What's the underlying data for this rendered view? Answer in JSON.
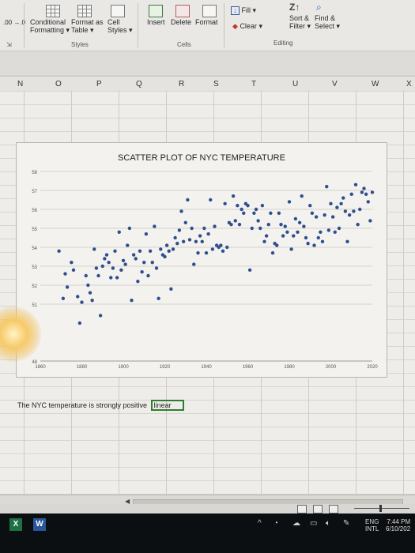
{
  "ribbon": {
    "number_format": ".00\n→.0",
    "conditional_formatting": "Conditional",
    "conditional_formatting_2": "Formatting",
    "format_as_table": "Format as",
    "format_as_table_2": "Table",
    "cell_styles": "Cell",
    "cell_styles_2": "Styles",
    "group_styles": "Styles",
    "insert": "Insert",
    "delete": "Delete",
    "format": "Format",
    "group_cells": "Cells",
    "fill": "Fill",
    "clear": "Clear",
    "sort_filter": "Sort &",
    "sort_filter_2": "Filter",
    "find_select": "Find &",
    "find_select_2": "Select",
    "group_editing": "Editing",
    "dropdown_glyph": "▾",
    "launcher_glyph": "⇲"
  },
  "columns": [
    "N",
    "O",
    "P",
    "Q",
    "R",
    "S",
    "T",
    "U",
    "V",
    "W",
    "X"
  ],
  "chart_data": {
    "type": "scatter",
    "title": "SCATTER PLOT OF NYC TEMPERATURE",
    "xlabel": "",
    "ylabel": "",
    "xlim": [
      1860,
      2020
    ],
    "ylim": [
      48,
      58
    ],
    "x_ticks": [
      1860,
      1880,
      1900,
      1920,
      1940,
      1960,
      1980,
      2000,
      2020
    ],
    "y_ticks": [
      58,
      57,
      56,
      55,
      54,
      53,
      52,
      51,
      48
    ],
    "grid": true,
    "color": "#2f4f8f",
    "points": [
      [
        1869,
        53.8
      ],
      [
        1871,
        51.3
      ],
      [
        1872,
        52.6
      ],
      [
        1873,
        51.9
      ],
      [
        1875,
        53.2
      ],
      [
        1876,
        52.8
      ],
      [
        1878,
        51.4
      ],
      [
        1879,
        50.0
      ],
      [
        1880,
        51.1
      ],
      [
        1882,
        52.5
      ],
      [
        1883,
        52.0
      ],
      [
        1884,
        51.6
      ],
      [
        1885,
        51.2
      ],
      [
        1886,
        53.9
      ],
      [
        1887,
        52.9
      ],
      [
        1888,
        52.5
      ],
      [
        1889,
        50.4
      ],
      [
        1890,
        53.0
      ],
      [
        1891,
        53.4
      ],
      [
        1892,
        53.6
      ],
      [
        1893,
        53.2
      ],
      [
        1894,
        52.4
      ],
      [
        1895,
        52.9
      ],
      [
        1896,
        53.8
      ],
      [
        1897,
        52.4
      ],
      [
        1898,
        54.8
      ],
      [
        1899,
        52.8
      ],
      [
        1900,
        53.3
      ],
      [
        1901,
        53.1
      ],
      [
        1902,
        54.1
      ],
      [
        1903,
        55.0
      ],
      [
        1904,
        51.2
      ],
      [
        1905,
        53.6
      ],
      [
        1906,
        53.4
      ],
      [
        1907,
        52.2
      ],
      [
        1908,
        53.8
      ],
      [
        1909,
        52.7
      ],
      [
        1910,
        53.2
      ],
      [
        1911,
        54.7
      ],
      [
        1912,
        52.5
      ],
      [
        1913,
        53.8
      ],
      [
        1914,
        53.2
      ],
      [
        1915,
        55.1
      ],
      [
        1916,
        52.9
      ],
      [
        1917,
        51.3
      ],
      [
        1918,
        53.9
      ],
      [
        1919,
        53.6
      ],
      [
        1920,
        53.5
      ],
      [
        1921,
        54.1
      ],
      [
        1922,
        53.8
      ],
      [
        1923,
        51.8
      ],
      [
        1924,
        53.9
      ],
      [
        1925,
        54.5
      ],
      [
        1926,
        54.2
      ],
      [
        1927,
        54.9
      ],
      [
        1928,
        55.9
      ],
      [
        1929,
        54.3
      ],
      [
        1930,
        55.3
      ],
      [
        1931,
        56.5
      ],
      [
        1932,
        54.4
      ],
      [
        1933,
        55.0
      ],
      [
        1934,
        53.1
      ],
      [
        1935,
        54.3
      ],
      [
        1936,
        53.7
      ],
      [
        1937,
        54.6
      ],
      [
        1938,
        54.3
      ],
      [
        1939,
        55.0
      ],
      [
        1940,
        53.7
      ],
      [
        1941,
        54.7
      ],
      [
        1942,
        56.5
      ],
      [
        1943,
        53.9
      ],
      [
        1944,
        55.1
      ],
      [
        1945,
        54.1
      ],
      [
        1946,
        54.0
      ],
      [
        1947,
        54.1
      ],
      [
        1948,
        53.8
      ],
      [
        1949,
        56.3
      ],
      [
        1950,
        54.0
      ],
      [
        1951,
        55.3
      ],
      [
        1952,
        55.2
      ],
      [
        1953,
        56.7
      ],
      [
        1954,
        55.4
      ],
      [
        1955,
        56.2
      ],
      [
        1956,
        55.2
      ],
      [
        1957,
        56.0
      ],
      [
        1958,
        55.8
      ],
      [
        1959,
        56.3
      ],
      [
        1960,
        56.2
      ],
      [
        1961,
        52.8
      ],
      [
        1962,
        55.0
      ],
      [
        1963,
        55.8
      ],
      [
        1964,
        56.0
      ],
      [
        1965,
        55.4
      ],
      [
        1966,
        55.0
      ],
      [
        1967,
        56.2
      ],
      [
        1968,
        54.3
      ],
      [
        1969,
        54.6
      ],
      [
        1970,
        55.2
      ],
      [
        1971,
        55.8
      ],
      [
        1972,
        53.7
      ],
      [
        1973,
        54.2
      ],
      [
        1974,
        54.1
      ],
      [
        1975,
        55.8
      ],
      [
        1976,
        55.2
      ],
      [
        1977,
        54.6
      ],
      [
        1978,
        55.1
      ],
      [
        1979,
        54.8
      ],
      [
        1980,
        56.4
      ],
      [
        1981,
        53.9
      ],
      [
        1982,
        54.6
      ],
      [
        1983,
        55.5
      ],
      [
        1984,
        54.8
      ],
      [
        1985,
        55.3
      ],
      [
        1986,
        56.7
      ],
      [
        1987,
        55.1
      ],
      [
        1988,
        54.5
      ],
      [
        1989,
        54.2
      ],
      [
        1990,
        56.2
      ],
      [
        1991,
        55.8
      ],
      [
        1992,
        54.1
      ],
      [
        1993,
        55.6
      ],
      [
        1994,
        54.5
      ],
      [
        1995,
        54.8
      ],
      [
        1996,
        54.3
      ],
      [
        1997,
        55.7
      ],
      [
        1998,
        57.2
      ],
      [
        1999,
        54.9
      ],
      [
        2000,
        56.3
      ],
      [
        2001,
        55.6
      ],
      [
        2002,
        54.8
      ],
      [
        2003,
        56.1
      ],
      [
        2004,
        55.0
      ],
      [
        2005,
        56.3
      ],
      [
        2006,
        56.6
      ],
      [
        2007,
        55.9
      ],
      [
        2008,
        54.3
      ],
      [
        2009,
        55.7
      ],
      [
        2010,
        56.8
      ],
      [
        2011,
        55.9
      ],
      [
        2012,
        57.3
      ],
      [
        2013,
        55.2
      ],
      [
        2014,
        56.0
      ],
      [
        2015,
        56.9
      ],
      [
        2016,
        57.1
      ],
      [
        2017,
        56.8
      ],
      [
        2018,
        56.4
      ],
      [
        2019,
        55.4
      ],
      [
        2020,
        56.9
      ]
    ]
  },
  "answer": {
    "text": "The NYC temperature is strongly positive",
    "selected_cell": "linear"
  },
  "taskbar": {
    "language": "ENG",
    "language_2": "INTL",
    "time": "7:44 PM",
    "date": "6/10/202"
  }
}
